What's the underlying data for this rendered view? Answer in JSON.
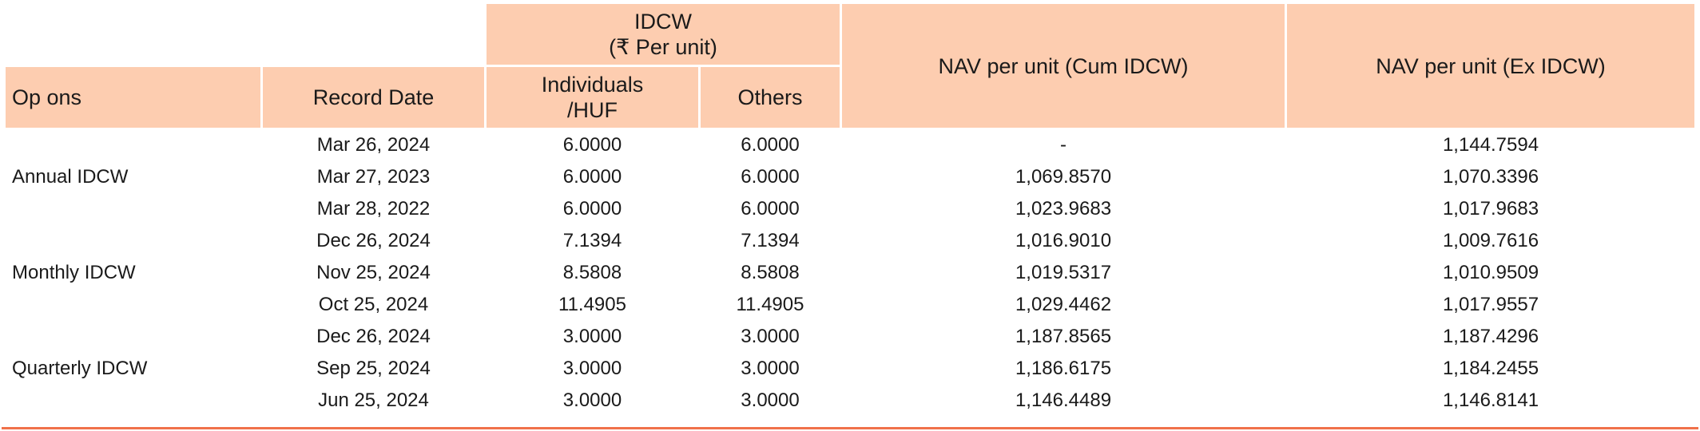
{
  "header": {
    "idcw_group": "IDCW",
    "idcw_group_sub": "(₹ Per unit)",
    "options": "Op ons",
    "record_date": "Record Date",
    "individuals": "Individuals",
    "individuals_sub": "/HUF",
    "others": "Others",
    "nav_cum": "NAV per unit (Cum IDCW)",
    "nav_ex": "NAV per unit (Ex IDCW)"
  },
  "colors": {
    "header_bg": "#fdcdb0",
    "bottom_rule": "#f0714a"
  },
  "groups": [
    {
      "option": "Annual IDCW",
      "rows": [
        {
          "date": "Mar 26, 2024",
          "individuals": "6.0000",
          "others": "6.0000",
          "nav_cum": "-",
          "nav_ex": "1,144.7594"
        },
        {
          "date": "Mar 27, 2023",
          "individuals": "6.0000",
          "others": "6.0000",
          "nav_cum": "1,069.8570",
          "nav_ex": "1,070.3396"
        },
        {
          "date": "Mar 28, 2022",
          "individuals": "6.0000",
          "others": "6.0000",
          "nav_cum": "1,023.9683",
          "nav_ex": "1,017.9683"
        }
      ]
    },
    {
      "option": "Monthly IDCW",
      "rows": [
        {
          "date": "Dec 26, 2024",
          "individuals": "7.1394",
          "others": "7.1394",
          "nav_cum": "1,016.9010",
          "nav_ex": "1,009.7616"
        },
        {
          "date": "Nov 25, 2024",
          "individuals": "8.5808",
          "others": "8.5808",
          "nav_cum": "1,019.5317",
          "nav_ex": "1,010.9509"
        },
        {
          "date": "Oct 25, 2024",
          "individuals": "11.4905",
          "others": "11.4905",
          "nav_cum": "1,029.4462",
          "nav_ex": "1,017.9557"
        }
      ]
    },
    {
      "option": "Quarterly IDCW",
      "rows": [
        {
          "date": "Dec 26, 2024",
          "individuals": "3.0000",
          "others": "3.0000",
          "nav_cum": "1,187.8565",
          "nav_ex": "1,187.4296"
        },
        {
          "date": "Sep 25, 2024",
          "individuals": "3.0000",
          "others": "3.0000",
          "nav_cum": "1,186.6175",
          "nav_ex": "1,184.2455"
        },
        {
          "date": "Jun 25, 2024",
          "individuals": "3.0000",
          "others": "3.0000",
          "nav_cum": "1,146.4489",
          "nav_ex": "1,146.8141"
        }
      ]
    }
  ]
}
